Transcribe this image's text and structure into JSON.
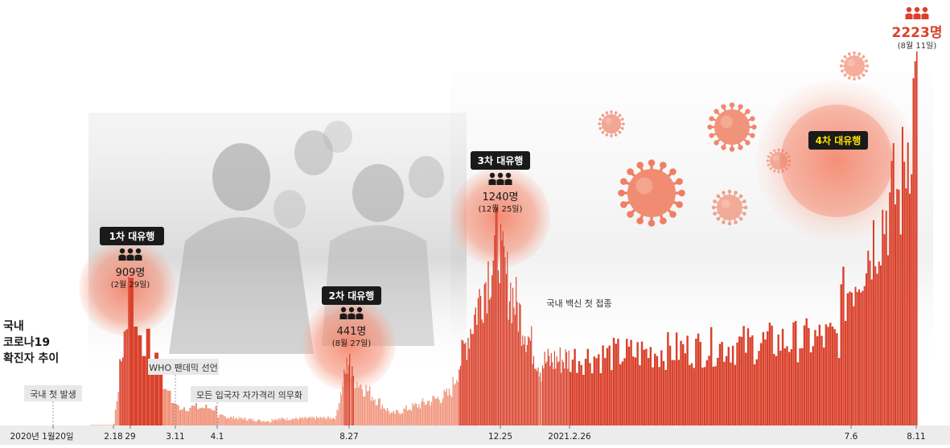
{
  "title_lines": [
    "국내",
    "코로나19",
    "확진자 추이"
  ],
  "colors": {
    "bar": "#d9412b",
    "bar_light": "#f0957c",
    "glow": "#f37a5e",
    "axis_bg": "#ececec",
    "label_bg": "#e8e8e8",
    "wave_tag_bg": "#1a1a1a",
    "wave4_text": "#ffe600",
    "peak_text": "#d9412b"
  },
  "icon": "people-icon",
  "chart_data": {
    "type": "bar",
    "ylim": [
      0,
      2223
    ],
    "x_ticks": [
      "2020년 1월20일",
      "2.18",
      "29",
      "3.11",
      "4.1",
      "8.27",
      "12.25",
      "2021.2.26",
      "7.6",
      "8.11"
    ],
    "events": [
      {
        "label": "국내 첫 발생"
      },
      {
        "label": "WHO 팬데믹 선언"
      },
      {
        "label": "모든 입국자 자가격리 의무화"
      },
      {
        "label": "국내 백신 첫 접종"
      }
    ],
    "waves": [
      {
        "tag": "1차 대유행",
        "value": 909,
        "value_text": "909명",
        "date_text": "(2월 29일)"
      },
      {
        "tag": "2차 대유행",
        "value": 441,
        "value_text": "441명",
        "date_text": "(8월 27일)"
      },
      {
        "tag": "3차 대유행",
        "value": 1240,
        "value_text": "1240명",
        "date_text": "(12월 25일)"
      },
      {
        "tag": "4차 대유행"
      }
    ],
    "peak": {
      "value": 2223,
      "value_text": "2223명",
      "date_text": "(8월 11일)"
    },
    "segments": [
      {
        "start": "2020-01-20",
        "end": "2020-02-17",
        "from": 0,
        "to": 2
      },
      {
        "start": "2020-02-18",
        "end": "2020-02-29",
        "from": 10,
        "to": 909
      },
      {
        "start": "2020-03-01",
        "end": "2020-03-10",
        "from": 680,
        "to": 150
      },
      {
        "start": "2020-03-11",
        "end": "2020-03-31",
        "from": 120,
        "to": 110
      },
      {
        "start": "2020-04-01",
        "end": "2020-05-31",
        "from": 60,
        "to": 25
      },
      {
        "start": "2020-06-01",
        "end": "2020-08-12",
        "from": 40,
        "to": 50
      },
      {
        "start": "2020-08-13",
        "end": "2020-08-27",
        "from": 100,
        "to": 441
      },
      {
        "start": "2020-08-28",
        "end": "2020-09-30",
        "from": 320,
        "to": 70
      },
      {
        "start": "2020-10-01",
        "end": "2020-11-15",
        "from": 75,
        "to": 200
      },
      {
        "start": "2020-11-16",
        "end": "2020-12-25",
        "from": 230,
        "to": 1240
      },
      {
        "start": "2020-12-26",
        "end": "2021-01-31",
        "from": 1000,
        "to": 350
      },
      {
        "start": "2021-02-01",
        "end": "2021-06-30",
        "from": 400,
        "to": 560
      },
      {
        "start": "2021-07-01",
        "end": "2021-07-31",
        "from": 780,
        "to": 1500
      },
      {
        "start": "2021-08-01",
        "end": "2021-08-11",
        "from": 1400,
        "to": 2223
      }
    ]
  }
}
